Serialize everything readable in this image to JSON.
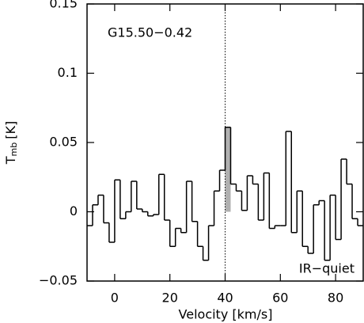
{
  "chart_data": {
    "type": "step",
    "source_label": "G15.50−0.42",
    "annotation": "IR−quiet",
    "xlabel": "Velocity [km/s]",
    "ylabel": {
      "main": "T",
      "sub": "mb",
      "unit": "[K]"
    },
    "x": [
      -9,
      -7,
      -5,
      -3,
      -1,
      1,
      3,
      5,
      7,
      9,
      11,
      13,
      15,
      17,
      19,
      21,
      23,
      25,
      27,
      29,
      31,
      33,
      35,
      37,
      39,
      41,
      43,
      45,
      47,
      49,
      51,
      53,
      55,
      57,
      59,
      61,
      63,
      65,
      67,
      69,
      71,
      73,
      75,
      77,
      79,
      81,
      83,
      85,
      87,
      89
    ],
    "values": [
      -0.01,
      0.005,
      0.012,
      -0.008,
      -0.022,
      0.023,
      -0.005,
      0.0,
      0.022,
      0.002,
      0.0,
      -0.003,
      -0.002,
      0.027,
      -0.006,
      -0.025,
      -0.012,
      -0.015,
      0.022,
      -0.007,
      -0.025,
      -0.035,
      -0.01,
      0.015,
      0.03,
      0.061,
      0.02,
      0.015,
      0.001,
      0.026,
      0.02,
      -0.006,
      0.028,
      -0.012,
      -0.01,
      -0.01,
      0.058,
      -0.015,
      0.015,
      -0.025,
      -0.03,
      0.005,
      0.008,
      -0.035,
      0.012,
      -0.02,
      0.038,
      0.02,
      -0.005,
      -0.01
    ],
    "color": "#000000",
    "highlight_index": 25,
    "highlight_color": "#b0b0b0",
    "vline": 40,
    "xlim": [
      -10,
      90
    ],
    "xticks": [
      0,
      20,
      40,
      60,
      80
    ],
    "ylim": [
      -0.05,
      0.15
    ],
    "yticks": [
      {
        "value": -0.05,
        "label": "−0.05"
      },
      0,
      0.05,
      0.1,
      0.15
    ]
  }
}
